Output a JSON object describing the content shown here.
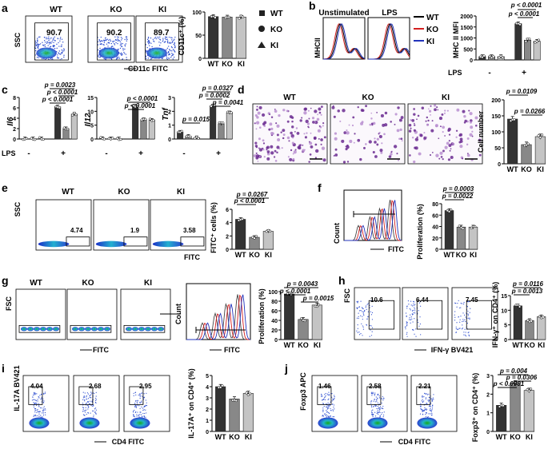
{
  "colors": {
    "wt": "#333333",
    "ko": "#888888",
    "ki": "#c4c4c4",
    "red": "#d42020",
    "blue": "#2233bb"
  },
  "panels": {
    "a": {
      "letter": "a",
      "groups": [
        "WT",
        "KO",
        "KI"
      ],
      "gates": [
        "90.7",
        "90.2",
        "89.7"
      ],
      "x_label": "CD11c FITC",
      "y_label": "SSC",
      "chart_ylabel": "CD11c⁺ (%)",
      "legend": [
        "WT",
        "KO",
        "KI"
      ]
    },
    "b": {
      "letter": "b",
      "hist_titles": [
        "Unstimulated",
        "LPS"
      ],
      "hist_ylabel": "MHCII",
      "legend": [
        "WT",
        "KO",
        "KI"
      ],
      "chart_ylabel": "MHC II MFI",
      "row_label": "LPS",
      "minus": "-",
      "plus": "+",
      "pvals": [
        "p < 0.0001",
        "p < 0.0001"
      ]
    },
    "c": {
      "letter": "c",
      "row_label": "LPS",
      "minus": "-",
      "plus": "+",
      "il6": {
        "ylabel": "Il6",
        "pvals": [
          "p = 0.0023",
          "p < 0.0001",
          "p < 0.0001"
        ]
      },
      "il12": {
        "ylabel": "Il12",
        "pvals": [
          "p < 0.0001",
          "p < 0.0001"
        ]
      },
      "tnf": {
        "ylabel": "Tnf",
        "pvals": [
          "p = 0.0327",
          "p = 0.0002",
          "p = 0.0041",
          "p = 0.015"
        ]
      }
    },
    "d": {
      "letter": "d",
      "groups": [
        "WT",
        "KO",
        "KI"
      ],
      "chart_ylabel": "Cell number",
      "pvals": [
        "p = 0.0109",
        "p = 0.0266"
      ]
    },
    "e": {
      "letter": "e",
      "groups": [
        "WT",
        "KO",
        "KI"
      ],
      "gates": [
        "4.74",
        "1.9",
        "3.58"
      ],
      "x_label": "FITC",
      "y_label": "SSC",
      "chart_ylabel": "FITC⁺ cells (%)",
      "pvals": [
        "p = 0.0267",
        "p < 0.0001"
      ]
    },
    "f": {
      "letter": "f",
      "hist_ylabel": "Count",
      "x_label": "FITC",
      "chart_ylabel": "Proliferation (%)",
      "groups": [
        "WT",
        "KO",
        "KI"
      ],
      "pvals": [
        "p = 0.0003",
        "p = 0.0022"
      ]
    },
    "g": {
      "letter": "g",
      "groups": [
        "WT",
        "KO",
        "KI"
      ],
      "x_label": "FITC",
      "y_label": "FSC",
      "hist_ylabel": "Count",
      "hist_xlabel": "FITC",
      "chart_ylabel": "Proliferation (%)",
      "pvals": [
        "p = 0.0043",
        "p < 0.0001",
        "p = 0.0015"
      ]
    },
    "h": {
      "letter": "h",
      "gates": [
        "10.6",
        "6.44",
        "7.45"
      ],
      "x_label": "IFN-γ BV421",
      "y_label": "FSC",
      "chart_ylabel": "IFN-γ⁺ on CD4⁺ (%)",
      "groups": [
        "WT",
        "KO",
        "KI"
      ],
      "pvals": [
        "p = 0.0116",
        "p = 0.0013"
      ]
    },
    "i": {
      "letter": "i",
      "gates": [
        "4.04",
        "2.68",
        "2.95"
      ],
      "x_label": "CD4 FITC",
      "y_label": "IL-17A BV421",
      "chart_ylabel": "IL-17A⁺ on CD4⁺ (%)",
      "groups": [
        "WT",
        "KO",
        "KI"
      ]
    },
    "j": {
      "letter": "j",
      "gates": [
        "1.46",
        "2.58",
        "2.21"
      ],
      "x_label": "CD4 FITC",
      "y_label": "Foxp3 APC",
      "chart_ylabel": "Foxp3⁺ on CD4⁺ (%)",
      "groups": [
        "WT",
        "KO",
        "KI"
      ],
      "pvals": [
        "p = 0.004",
        "p = 0.0306",
        "p < 0.0001"
      ]
    }
  },
  "chart_data": [
    {
      "panel": "a",
      "type": "bar",
      "categories": [
        "WT",
        "KO",
        "KI"
      ],
      "values": [
        90,
        89,
        89
      ],
      "ylim": [
        0,
        100
      ],
      "ticks": [
        0,
        50,
        100
      ],
      "ylabel": "CD11c⁺ (%)"
    },
    {
      "panel": "b",
      "type": "bar",
      "categories": [
        "WT",
        "KO",
        "KI",
        "WT",
        "KO",
        "KI"
      ],
      "values": [
        150,
        150,
        150,
        1650,
        900,
        850
      ],
      "ylim": [
        0,
        2000
      ],
      "ticks": [
        0,
        500,
        1000,
        1500,
        2000
      ],
      "ylabel": "MHC II MFI"
    },
    {
      "panel": "c-il6",
      "type": "bar",
      "categories": [
        "WT",
        "KO",
        "KI",
        "WT",
        "KO",
        "KI"
      ],
      "values": [
        0.05,
        0.05,
        0.05,
        6.2,
        2.0,
        4.8
      ],
      "ylim": [
        0,
        8
      ],
      "ticks": [
        0,
        2,
        4,
        6,
        8
      ],
      "ylabel": "Il6"
    },
    {
      "panel": "c-il12",
      "type": "bar",
      "categories": [
        "WT",
        "KO",
        "KI",
        "WT",
        "KO",
        "KI"
      ],
      "values": [
        0.2,
        0.1,
        0.1,
        12,
        7,
        6.8
      ],
      "ylim": [
        0,
        15
      ],
      "ticks": [
        0,
        5,
        10,
        15
      ],
      "ylabel": "Il12"
    },
    {
      "panel": "c-tnf",
      "type": "bar",
      "categories": [
        "WT",
        "KO",
        "KI",
        "WT",
        "KO",
        "KI"
      ],
      "values": [
        0.5,
        0.2,
        0.1,
        2.4,
        1.1,
        1.9
      ],
      "ylim": [
        0,
        3
      ],
      "ticks": [
        0,
        1,
        2,
        3
      ],
      "ylabel": "Tnf"
    },
    {
      "panel": "d",
      "type": "bar",
      "categories": [
        "WT",
        "KO",
        "KI"
      ],
      "values": [
        140,
        60,
        85
      ],
      "ylim": [
        0,
        200
      ],
      "ticks": [
        0,
        50,
        100,
        150,
        200
      ],
      "ylabel": "Cell number"
    },
    {
      "panel": "e",
      "type": "bar",
      "categories": [
        "WT",
        "KO",
        "KI"
      ],
      "values": [
        4.5,
        1.8,
        2.7
      ],
      "ylim": [
        0,
        6
      ],
      "ticks": [
        0,
        2,
        4,
        6
      ],
      "ylabel": "FITC⁺ cells (%)"
    },
    {
      "panel": "f",
      "type": "bar",
      "categories": [
        "WT",
        "KO",
        "KI"
      ],
      "values": [
        68,
        39,
        39
      ],
      "ylim": [
        0,
        80
      ],
      "ticks": [
        0,
        20,
        40,
        60,
        80
      ],
      "ylabel": "Proliferation (%)"
    },
    {
      "panel": "g",
      "type": "bar",
      "categories": [
        "WT",
        "KO",
        "KI"
      ],
      "values": [
        95,
        42,
        72
      ],
      "ylim": [
        0,
        100
      ],
      "ticks": [
        0,
        20,
        40,
        60,
        80,
        100
      ],
      "ylabel": "Proliferation (%)"
    },
    {
      "panel": "h",
      "type": "bar",
      "categories": [
        "WT",
        "KO",
        "KI"
      ],
      "values": [
        11.5,
        6.5,
        7.8
      ],
      "ylim": [
        0,
        15
      ],
      "ticks": [
        0,
        5,
        10,
        15
      ],
      "ylabel": "IFN-γ⁺ on CD4⁺ (%)"
    },
    {
      "panel": "i",
      "type": "bar",
      "categories": [
        "WT",
        "KO",
        "KI"
      ],
      "values": [
        4.0,
        2.9,
        3.4
      ],
      "ylim": [
        0,
        5
      ],
      "ticks": [
        0,
        1,
        2,
        3,
        4,
        5
      ],
      "ylabel": "IL-17A⁺ on CD4⁺ (%)"
    },
    {
      "panel": "j",
      "type": "bar",
      "categories": [
        "WT",
        "KO",
        "KI"
      ],
      "values": [
        1.4,
        2.6,
        2.2
      ],
      "ylim": [
        0,
        3
      ],
      "ticks": [
        0,
        1,
        2,
        3
      ],
      "ylabel": "Foxp3⁺ on CD4⁺ (%)"
    }
  ]
}
